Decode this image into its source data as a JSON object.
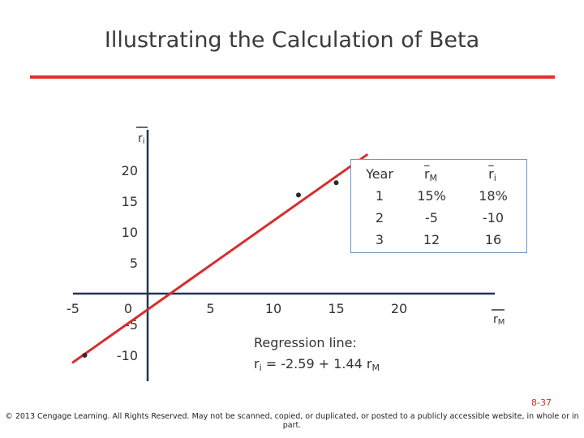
{
  "slide": {
    "title": "Illustrating the Calculation of Beta",
    "page_number": "8-37",
    "copyright": "© 2013 Cengage Learning. All Rights Reserved. May not be scanned, copied, or duplicated, or posted to a publicly accessible website, in whole or in part."
  },
  "regression": {
    "caption": "Regression line:",
    "equation_lhs": "r",
    "equation_lhs_sub": "i",
    "equation_mid": " = -2.59 + 1.44 r",
    "equation_rhs_sub": "M"
  },
  "table": {
    "headers": [
      "Year",
      "r",
      "r"
    ],
    "header_subs": [
      "",
      "M",
      "i"
    ],
    "rows": [
      [
        "1",
        "15%",
        "18%"
      ],
      [
        "2",
        "-5",
        "-10"
      ],
      [
        "3",
        "12",
        "16"
      ]
    ]
  },
  "chart_data": {
    "type": "scatter",
    "xlabel": "r",
    "xlabel_sub": "M",
    "ylabel": "r",
    "ylabel_sub": "i",
    "xlim": [
      -7,
      25
    ],
    "ylim": [
      -12,
      25
    ],
    "x_ticks": [
      "-5",
      "0",
      "5",
      "10",
      "15",
      "20"
    ],
    "x_tick_values": [
      -5,
      0,
      5,
      10,
      15,
      20
    ],
    "y_ticks": [
      "20",
      "15",
      "10",
      "5",
      "-5",
      "-10"
    ],
    "y_tick_values": [
      20,
      15,
      10,
      5,
      -5,
      -10
    ],
    "points": [
      {
        "x": 15,
        "y": 18
      },
      {
        "x": -5,
        "y": -10
      },
      {
        "x": 12,
        "y": 16
      }
    ],
    "regression_line": {
      "intercept": -2.59,
      "slope": 1.44
    },
    "colors": {
      "line": "#d82d2d",
      "points": "#2b2b2b",
      "axes": "#1f3554"
    }
  }
}
